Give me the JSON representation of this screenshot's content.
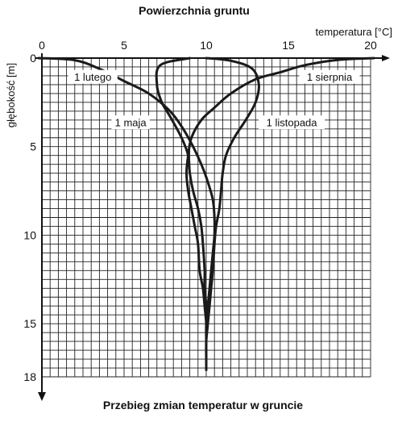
{
  "chart_data": {
    "type": "line",
    "title": "Powierzchnia gruntu",
    "subtitle": "Przebieg zmian temperatur w gruncie",
    "xlabel": "temperatura [°C]",
    "ylabel": "głębokość [m]",
    "xlim": [
      0,
      20
    ],
    "ylim": [
      0,
      18
    ],
    "y_inverted": true,
    "x_position": "top",
    "grid": true,
    "x_ticks": [
      "0",
      "5",
      "10",
      "15",
      "20"
    ],
    "y_ticks": [
      "0",
      "5",
      "10",
      "15",
      "18"
    ],
    "line_color": "#1a1a1a",
    "series": [
      {
        "name": "1 lutego",
        "points": [
          [
            -0.2,
            0.0
          ],
          [
            2.0,
            0.12
          ],
          [
            3.5,
            0.6
          ],
          [
            5.0,
            1.3
          ],
          [
            6.5,
            2.0
          ],
          [
            7.8,
            3.0
          ],
          [
            8.6,
            4.0
          ],
          [
            9.2,
            5.0
          ],
          [
            9.7,
            6.0
          ],
          [
            10.1,
            7.0
          ],
          [
            10.4,
            8.0
          ],
          [
            10.5,
            9.0
          ],
          [
            10.5,
            10.0
          ],
          [
            10.4,
            11.0
          ],
          [
            10.3,
            12.0
          ],
          [
            10.2,
            13.0
          ],
          [
            10.1,
            14.0
          ],
          [
            10.0,
            15.0
          ],
          [
            10.0,
            16.0
          ],
          [
            10.0,
            17.0
          ],
          [
            10.0,
            17.6
          ]
        ]
      },
      {
        "name": "1 maja",
        "points": [
          [
            9.0,
            0.0
          ],
          [
            7.2,
            0.4
          ],
          [
            7.0,
            1.5
          ],
          [
            7.3,
            2.5
          ],
          [
            7.8,
            3.3
          ],
          [
            8.5,
            4.5
          ],
          [
            8.9,
            5.5
          ],
          [
            9.0,
            6.5
          ],
          [
            9.2,
            7.5
          ],
          [
            9.5,
            8.5
          ],
          [
            9.7,
            9.5
          ],
          [
            9.8,
            10.5
          ],
          [
            9.9,
            12.0
          ],
          [
            9.9,
            13.0
          ],
          [
            10.0,
            14.0
          ],
          [
            10.0,
            15.0
          ],
          [
            10.0,
            16.0
          ],
          [
            10.0,
            17.0
          ],
          [
            10.0,
            17.6
          ]
        ]
      },
      {
        "name": "1 sierpnia",
        "points": [
          [
            20.2,
            0.0
          ],
          [
            18.0,
            0.1
          ],
          [
            16.0,
            0.4
          ],
          [
            14.5,
            0.8
          ],
          [
            13.0,
            1.2
          ],
          [
            11.5,
            2.0
          ],
          [
            10.5,
            2.8
          ],
          [
            9.7,
            3.5
          ],
          [
            9.1,
            4.5
          ],
          [
            8.9,
            5.5
          ],
          [
            8.8,
            6.5
          ],
          [
            8.9,
            7.5
          ],
          [
            9.1,
            8.5
          ],
          [
            9.3,
            9.5
          ],
          [
            9.5,
            10.5
          ],
          [
            9.6,
            12.0
          ],
          [
            9.8,
            13.0
          ],
          [
            9.9,
            14.0
          ],
          [
            10.0,
            15.0
          ],
          [
            10.0,
            16.0
          ],
          [
            10.0,
            17.0
          ],
          [
            10.0,
            17.6
          ]
        ]
      },
      {
        "name": "1 listopada",
        "points": [
          [
            10.0,
            0.0
          ],
          [
            11.5,
            0.15
          ],
          [
            12.8,
            0.6
          ],
          [
            13.2,
            1.5
          ],
          [
            13.0,
            2.5
          ],
          [
            12.4,
            3.5
          ],
          [
            11.7,
            4.5
          ],
          [
            11.2,
            5.5
          ],
          [
            11.0,
            6.5
          ],
          [
            10.9,
            7.5
          ],
          [
            10.8,
            8.5
          ],
          [
            10.6,
            9.5
          ],
          [
            10.5,
            10.5
          ],
          [
            10.4,
            12.0
          ],
          [
            10.3,
            13.0
          ],
          [
            10.2,
            14.0
          ],
          [
            10.1,
            15.0
          ],
          [
            10.0,
            16.0
          ],
          [
            10.0,
            17.0
          ],
          [
            10.0,
            17.6
          ]
        ]
      }
    ]
  }
}
